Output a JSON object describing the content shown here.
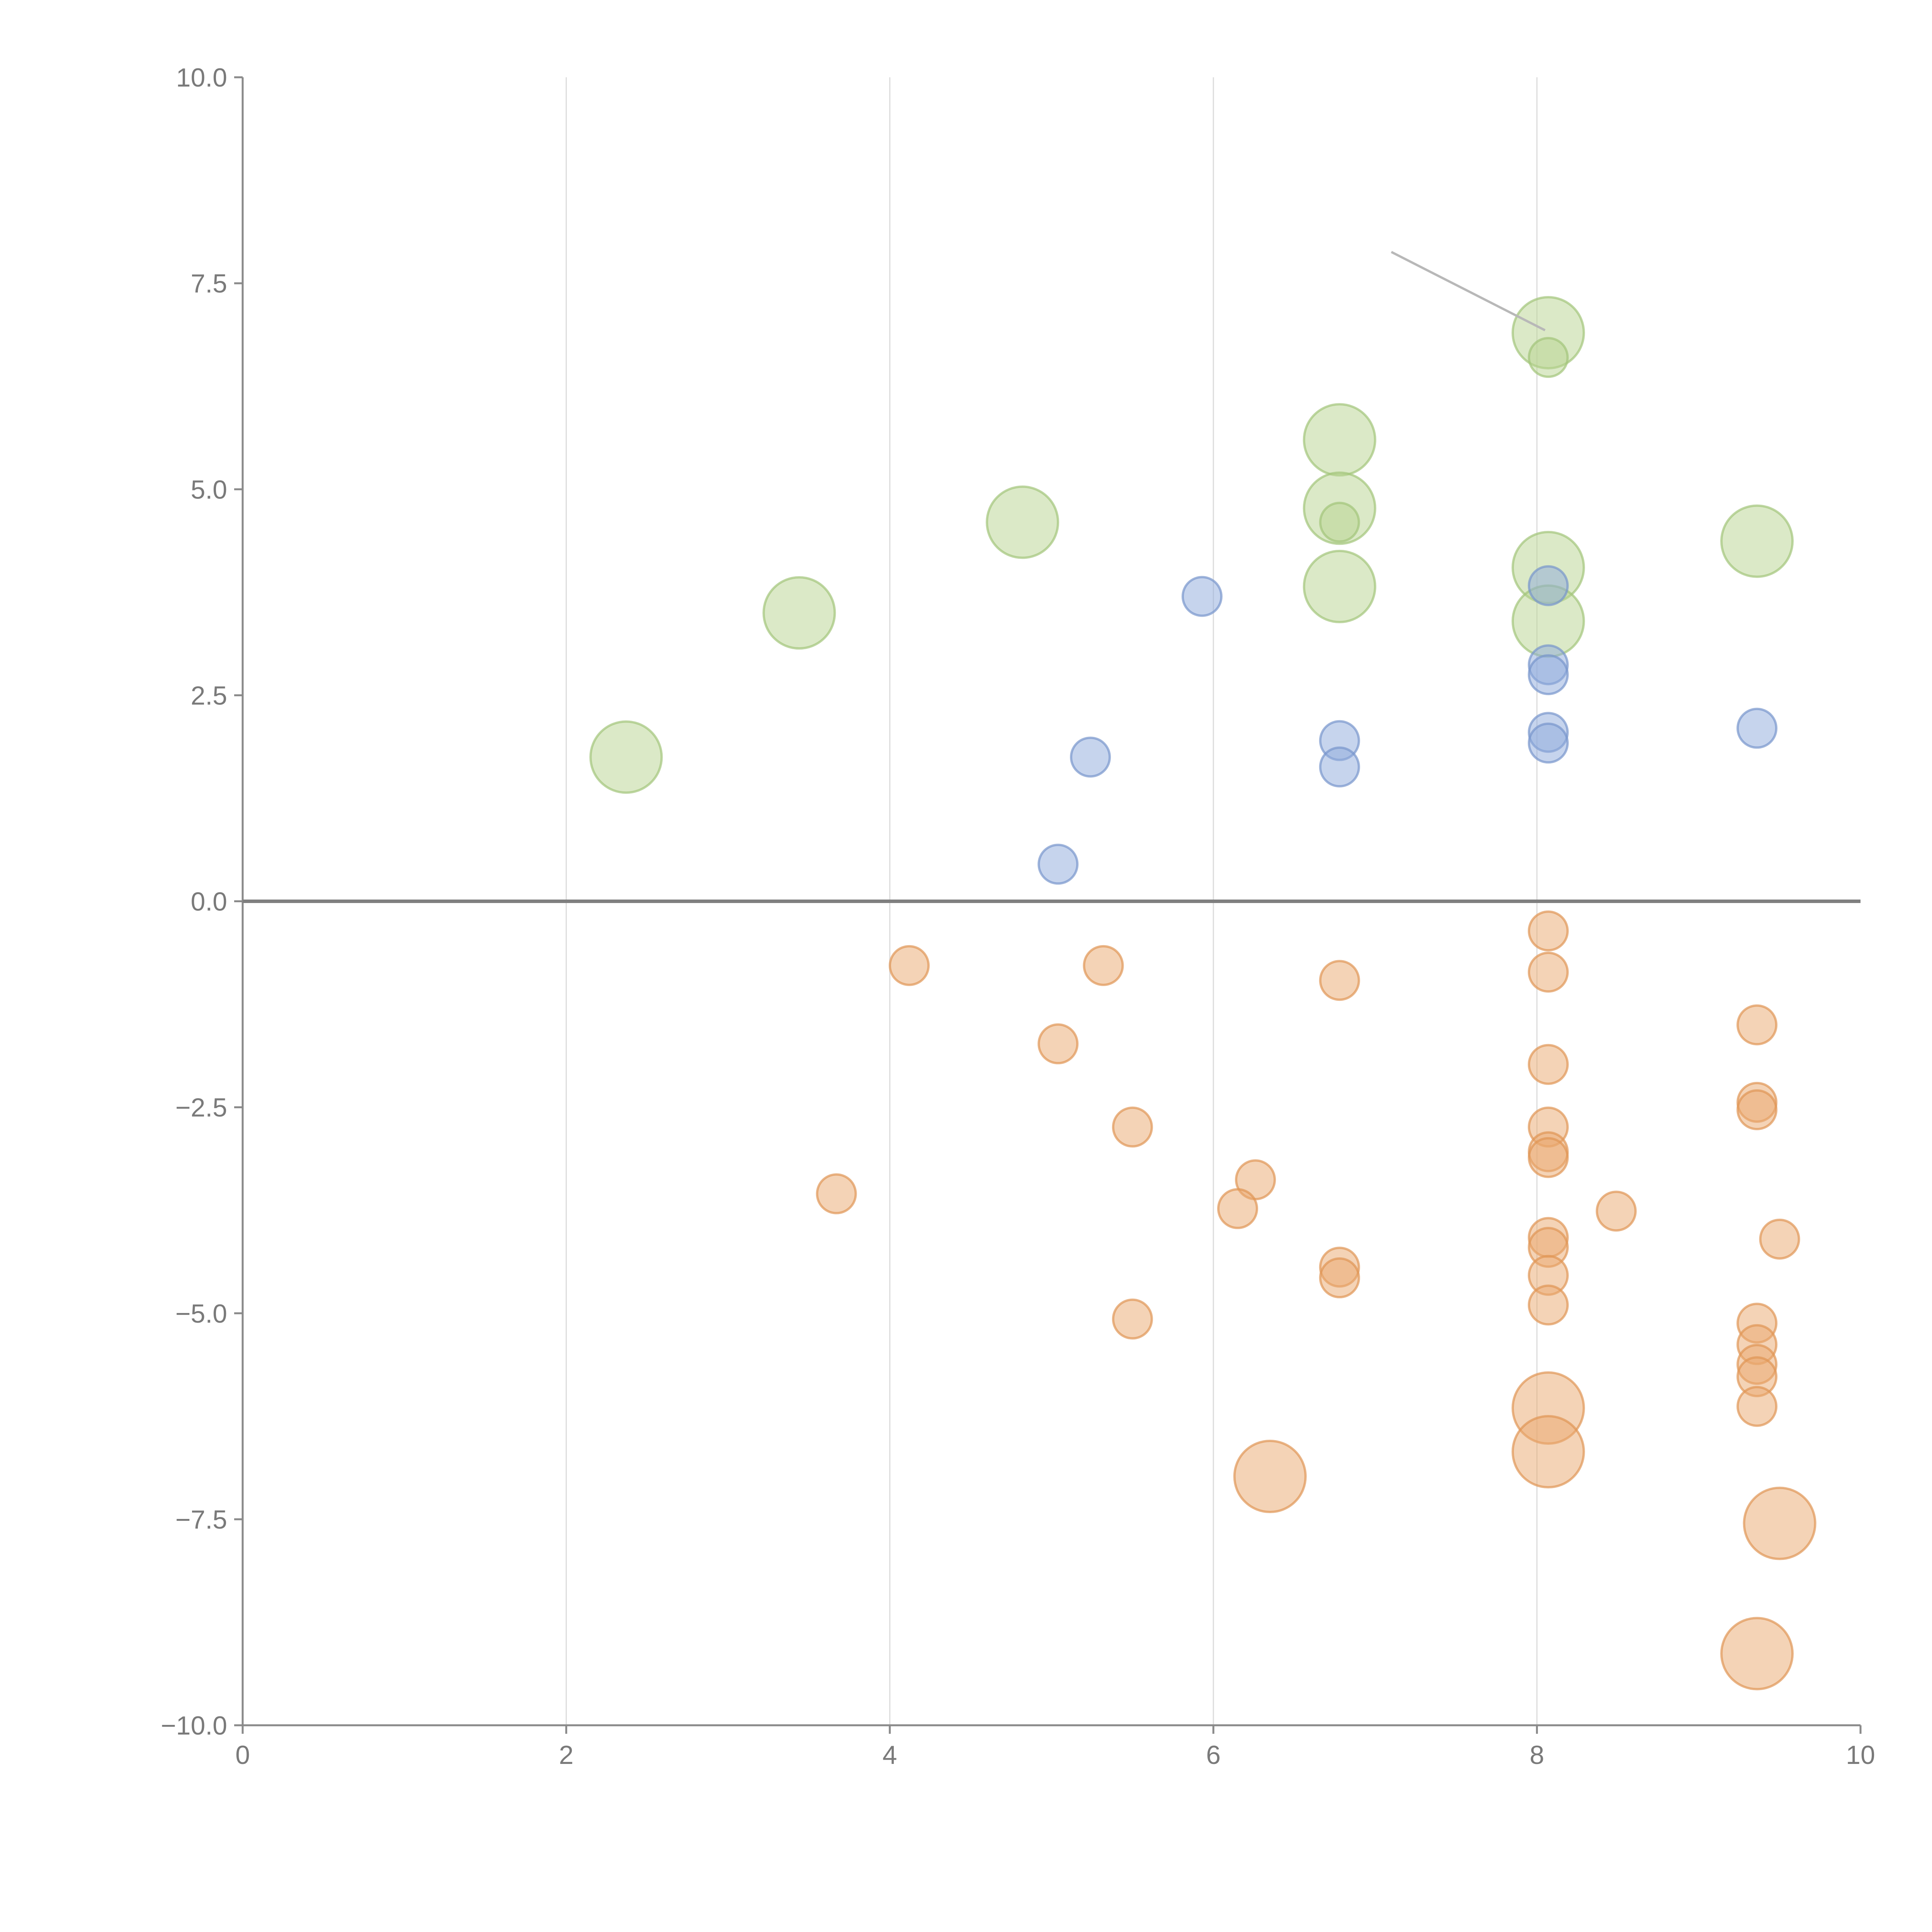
{
  "chart_data": {
    "type": "scatter",
    "title": "",
    "xlabel": "",
    "ylabel": "",
    "xlim": [
      0,
      10
    ],
    "ylim": [
      -10,
      10
    ],
    "grid": "vertical",
    "x_ticks": [
      "0",
      "2",
      "4",
      "6",
      "8",
      "10"
    ],
    "y_ticks": [
      "10.0",
      "7.5",
      "5.0",
      "2.5",
      "0.0",
      "−2.5",
      "−5.0",
      "−7.5",
      "−10.0"
    ],
    "colors": {
      "green": "#b8d38f",
      "blue": "#8eaadb",
      "orange": "#eaa86e"
    },
    "series": [
      {
        "name": "green",
        "color": "#b8d38f",
        "stroke": "#a3c47a",
        "points": [
          {
            "x": 2.37,
            "y": 1.75,
            "size": "large"
          },
          {
            "x": 3.44,
            "y": 3.5,
            "size": "large"
          },
          {
            "x": 4.82,
            "y": 4.6,
            "size": "large"
          },
          {
            "x": 6.78,
            "y": 5.6,
            "size": "large"
          },
          {
            "x": 6.78,
            "y": 4.77,
            "size": "large"
          },
          {
            "x": 6.78,
            "y": 3.82,
            "size": "large"
          },
          {
            "x": 6.78,
            "y": 4.6,
            "size": "small"
          },
          {
            "x": 8.07,
            "y": 6.9,
            "size": "large"
          },
          {
            "x": 8.07,
            "y": 6.6,
            "size": "small"
          },
          {
            "x": 8.07,
            "y": 4.05,
            "size": "large"
          },
          {
            "x": 8.07,
            "y": 3.4,
            "size": "large"
          },
          {
            "x": 9.36,
            "y": 4.37,
            "size": "large"
          }
        ]
      },
      {
        "name": "blue",
        "color": "#8eaadb",
        "stroke": "#7896cc",
        "points": [
          {
            "x": 5.93,
            "y": 3.7,
            "size": "small"
          },
          {
            "x": 5.24,
            "y": 1.75,
            "size": "small"
          },
          {
            "x": 5.04,
            "y": 0.45,
            "size": "small"
          },
          {
            "x": 6.78,
            "y": 1.95,
            "size": "small"
          },
          {
            "x": 6.78,
            "y": 1.63,
            "size": "small"
          },
          {
            "x": 8.07,
            "y": 3.83,
            "size": "small"
          },
          {
            "x": 8.07,
            "y": 2.87,
            "size": "small"
          },
          {
            "x": 8.07,
            "y": 2.75,
            "size": "small"
          },
          {
            "x": 8.07,
            "y": 2.05,
            "size": "small"
          },
          {
            "x": 8.07,
            "y": 1.92,
            "size": "small"
          },
          {
            "x": 9.36,
            "y": 2.1,
            "size": "small"
          }
        ]
      },
      {
        "name": "orange",
        "color": "#eaa86e",
        "stroke": "#e09556",
        "points": [
          {
            "x": 4.12,
            "y": -0.78,
            "size": "small"
          },
          {
            "x": 5.32,
            "y": -0.78,
            "size": "small"
          },
          {
            "x": 5.04,
            "y": -1.73,
            "size": "small"
          },
          {
            "x": 5.5,
            "y": -2.74,
            "size": "small"
          },
          {
            "x": 3.67,
            "y": -3.55,
            "size": "small"
          },
          {
            "x": 6.26,
            "y": -3.38,
            "size": "small"
          },
          {
            "x": 6.15,
            "y": -3.73,
            "size": "small"
          },
          {
            "x": 5.5,
            "y": -5.07,
            "size": "small"
          },
          {
            "x": 6.78,
            "y": -0.96,
            "size": "small"
          },
          {
            "x": 6.78,
            "y": -4.44,
            "size": "small"
          },
          {
            "x": 6.78,
            "y": -4.57,
            "size": "small"
          },
          {
            "x": 6.35,
            "y": -6.98,
            "size": "large"
          },
          {
            "x": 8.07,
            "y": -0.36,
            "size": "small"
          },
          {
            "x": 8.07,
            "y": -0.86,
            "size": "small"
          },
          {
            "x": 8.07,
            "y": -1.98,
            "size": "small"
          },
          {
            "x": 8.07,
            "y": -2.74,
            "size": "small"
          },
          {
            "x": 8.07,
            "y": -3.04,
            "size": "small"
          },
          {
            "x": 8.07,
            "y": -3.11,
            "size": "small"
          },
          {
            "x": 8.07,
            "y": -4.08,
            "size": "small"
          },
          {
            "x": 8.07,
            "y": -4.2,
            "size": "small"
          },
          {
            "x": 8.07,
            "y": -4.54,
            "size": "small"
          },
          {
            "x": 8.07,
            "y": -4.9,
            "size": "small"
          },
          {
            "x": 8.07,
            "y": -6.15,
            "size": "large"
          },
          {
            "x": 8.07,
            "y": -6.68,
            "size": "large"
          },
          {
            "x": 8.49,
            "y": -3.76,
            "size": "small"
          },
          {
            "x": 9.36,
            "y": -1.5,
            "size": "small"
          },
          {
            "x": 9.36,
            "y": -2.44,
            "size": "small"
          },
          {
            "x": 9.36,
            "y": -2.53,
            "size": "small"
          },
          {
            "x": 9.36,
            "y": -5.12,
            "size": "small"
          },
          {
            "x": 9.36,
            "y": -5.38,
            "size": "small"
          },
          {
            "x": 9.36,
            "y": -5.62,
            "size": "small"
          },
          {
            "x": 9.36,
            "y": -5.77,
            "size": "small"
          },
          {
            "x": 9.36,
            "y": -6.13,
            "size": "small"
          },
          {
            "x": 9.36,
            "y": -9.13,
            "size": "large"
          },
          {
            "x": 9.5,
            "y": -4.1,
            "size": "small"
          },
          {
            "x": 9.5,
            "y": -7.55,
            "size": "large"
          }
        ]
      }
    ],
    "leader_lines": [
      {
        "from": [
          7.1,
          7.88
        ],
        "to": [
          8.05,
          6.93
        ],
        "color": "#b8b8b8"
      }
    ]
  }
}
